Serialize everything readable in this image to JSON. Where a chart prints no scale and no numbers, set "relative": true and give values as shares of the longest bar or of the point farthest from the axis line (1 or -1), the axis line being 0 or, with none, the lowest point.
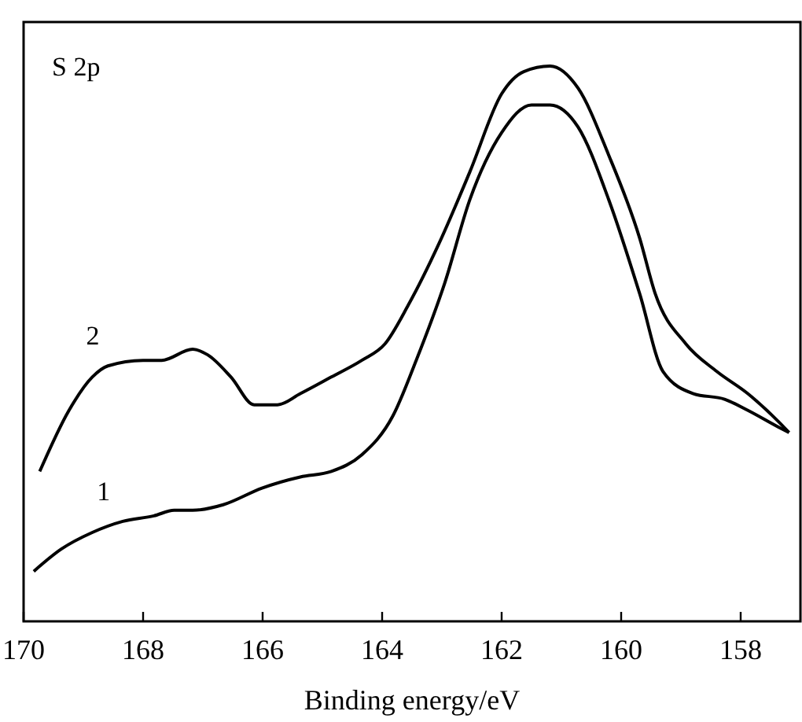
{
  "chart_data": {
    "type": "line",
    "title": "S 2p",
    "xlabel": "Binding energy/eV",
    "relative": true,
    "xlim": [
      170,
      157
    ],
    "xticks": [
      170,
      168,
      166,
      164,
      162,
      160,
      158
    ],
    "marker": "none",
    "line_style": "solid",
    "grid": false,
    "series": [
      {
        "name": "1",
        "color": "#000000",
        "x": [
          169.83,
          169.37,
          168.85,
          168.34,
          167.82,
          167.48,
          167.17,
          166.66,
          166.01,
          165.37,
          164.85,
          164.34,
          163.82,
          163.43,
          162.95,
          162.53,
          162,
          161.5,
          161.19,
          160.72,
          160.21,
          159.69,
          159.3,
          158.79,
          158.27,
          157.88,
          157.37,
          157.19
        ],
        "values": [
          0.09,
          0.13,
          0.16,
          0.18,
          0.19,
          0.2,
          0.2,
          0.21,
          0.24,
          0.26,
          0.27,
          0.3,
          0.37,
          0.47,
          0.61,
          0.76,
          0.88,
          0.93,
          0.93,
          0.89,
          0.76,
          0.59,
          0.45,
          0.41,
          0.4,
          0.38,
          0.35,
          0.34
        ]
      },
      {
        "name": "2",
        "color": "#000000",
        "x": [
          169.73,
          169.24,
          168.85,
          168.59,
          168,
          167.69,
          167.17,
          166.92,
          166.53,
          166.14,
          165.75,
          165.37,
          164.85,
          164.34,
          163.95,
          163.56,
          163.05,
          162.53,
          162,
          161.63,
          161.19,
          160.72,
          160.21,
          159.69,
          159.43,
          158.92,
          158.4,
          157.88,
          157.37,
          157.19
        ],
        "values": [
          0.27,
          0.38,
          0.44,
          0.46,
          0.47,
          0.47,
          0.49,
          0.48,
          0.44,
          0.39,
          0.39,
          0.41,
          0.44,
          0.47,
          0.5,
          0.57,
          0.68,
          0.81,
          0.95,
          0.99,
          1,
          0.96,
          0.84,
          0.69,
          0.59,
          0.5,
          0.45,
          0.41,
          0.36,
          0.34
        ]
      }
    ]
  }
}
